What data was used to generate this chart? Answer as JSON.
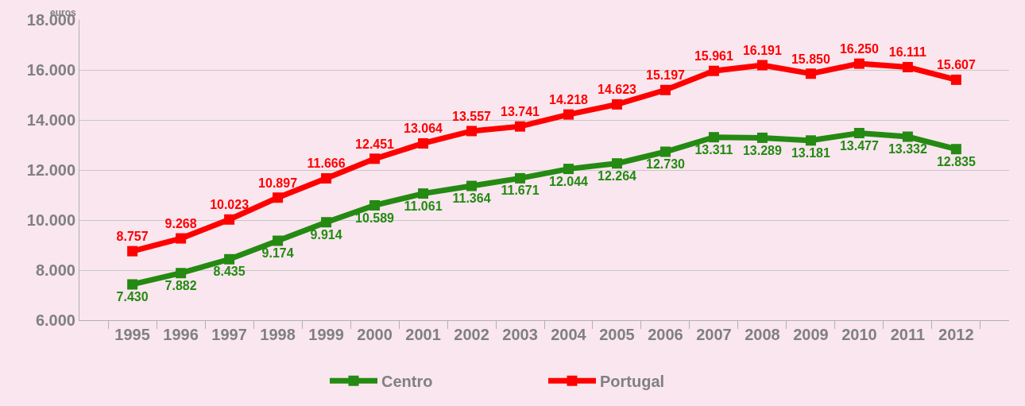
{
  "chart_data": {
    "type": "line",
    "annotations": [
      "euros"
    ],
    "categories": [
      "1995",
      "1996",
      "1997",
      "1998",
      "1999",
      "2000",
      "2001",
      "2002",
      "2003",
      "2004",
      "2005",
      "2006",
      "2007",
      "2008",
      "2009",
      "2010",
      "2011",
      "2012"
    ],
    "series": [
      {
        "name": "Centro",
        "color": "#248a12",
        "values": [
          7430,
          7882,
          8435,
          9174,
          9914,
          10589,
          11061,
          11364,
          11671,
          12044,
          12264,
          12730,
          13311,
          13289,
          13181,
          13477,
          13332,
          12835
        ],
        "value_labels": [
          "7.430",
          "7.882",
          "8.435",
          "9.174",
          "9.914",
          "10.589",
          "11.061",
          "11.364",
          "11.671",
          "12.044",
          "12.264",
          "12.730",
          "13.311",
          "13.289",
          "13.181",
          "13.477",
          "13.332",
          "12.835"
        ]
      },
      {
        "name": "Portugal",
        "color": "#ff0000",
        "values": [
          8757,
          9268,
          10023,
          10897,
          11666,
          12451,
          13064,
          13557,
          13741,
          14218,
          14623,
          15197,
          15961,
          16191,
          15850,
          16250,
          16111,
          15607
        ],
        "value_labels": [
          "8.757",
          "9.268",
          "10.023",
          "10.897",
          "11.666",
          "12.451",
          "13.064",
          "13.557",
          "13.741",
          "14.218",
          "14.623",
          "15.197",
          "15.961",
          "16.191",
          "15.850",
          "16.250",
          "16.111",
          "15.607"
        ]
      }
    ],
    "ylim": [
      6000,
      18000
    ],
    "yticks": [
      {
        "value": 6000,
        "label": "6.000"
      },
      {
        "value": 8000,
        "label": "8.000"
      },
      {
        "value": 10000,
        "label": "10.000"
      },
      {
        "value": 12000,
        "label": "12.000"
      },
      {
        "value": 14000,
        "label": "14.000"
      },
      {
        "value": 16000,
        "label": "16.000"
      },
      {
        "value": 18000,
        "label": "18.000"
      }
    ],
    "grid": "y",
    "legend": "bottom",
    "marker": "square",
    "line_style": "solid"
  }
}
